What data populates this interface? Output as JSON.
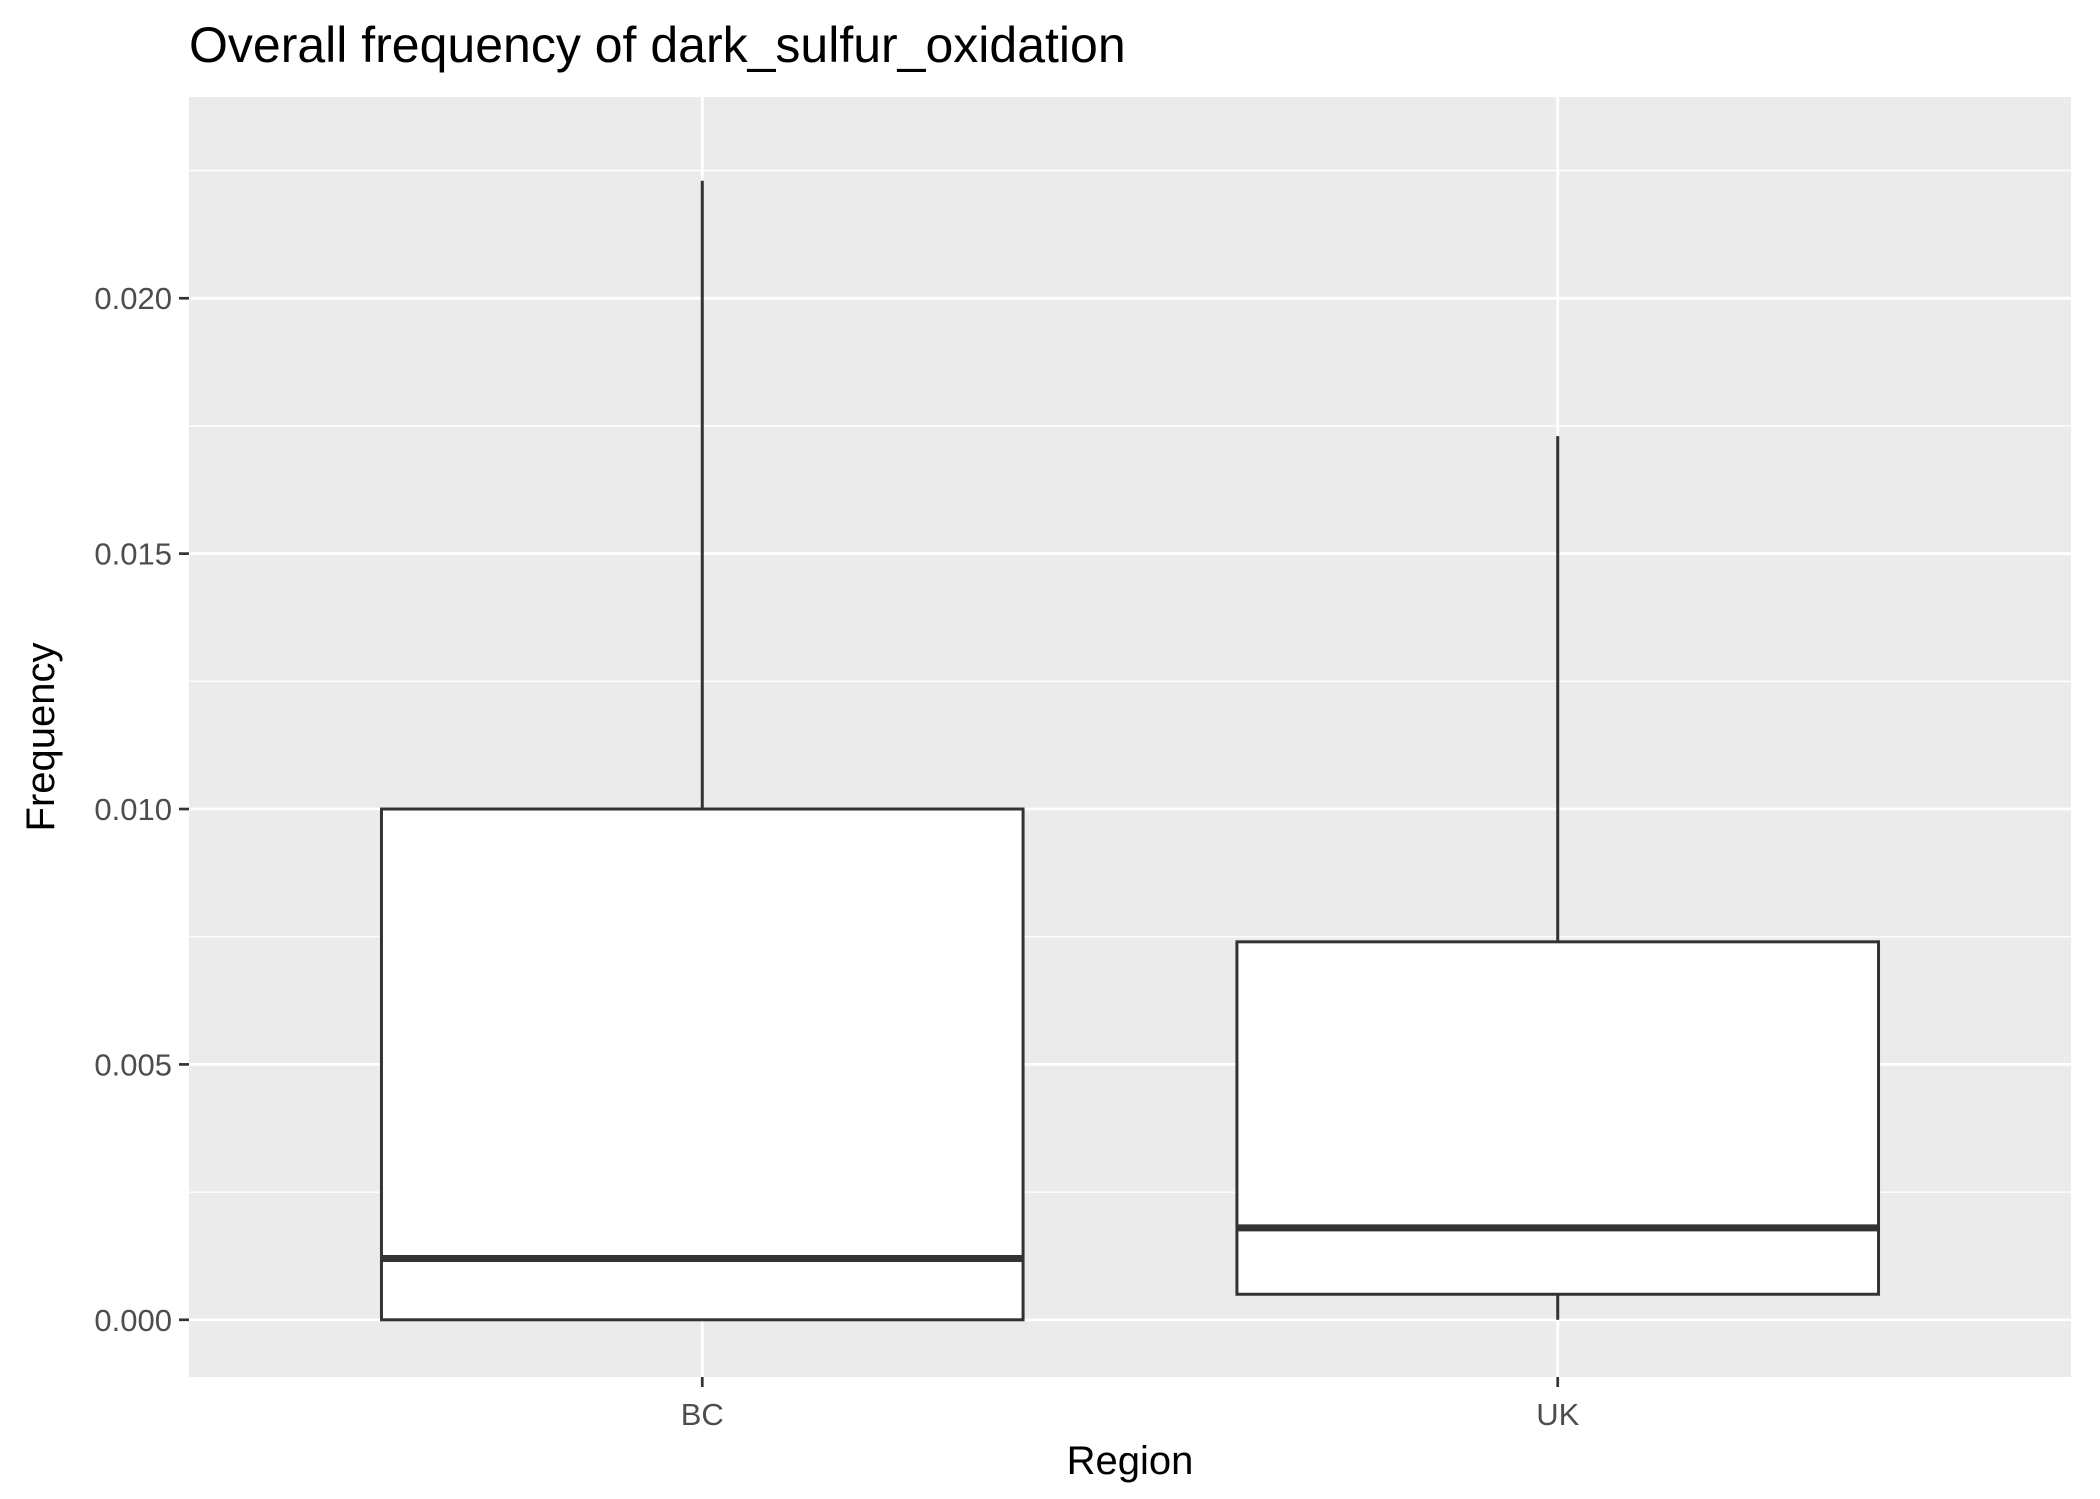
{
  "chart_data": {
    "type": "boxplot",
    "title": "Overall frequency of dark_sulfur_oxidation",
    "xlabel": "Region",
    "ylabel": "Frequency",
    "categories": [
      "BC",
      "UK"
    ],
    "boxes": [
      {
        "category": "BC",
        "min": 0.0,
        "q1": 0.0,
        "median": 0.0012,
        "q3": 0.01,
        "max": 0.0223
      },
      {
        "category": "UK",
        "min": 0.0,
        "q1": 0.0005,
        "median": 0.0018,
        "q3": 0.0074,
        "max": 0.0173
      }
    ],
    "yticks": [
      0.0,
      0.005,
      0.01,
      0.015,
      0.02
    ],
    "ytick_labels": [
      "0.000",
      "0.005",
      "0.010",
      "0.015",
      "0.020"
    ],
    "ylim": [
      -0.00112,
      0.02394
    ],
    "grid": true,
    "colors": {
      "panel_background": "#ebebeb",
      "grid_major": "#ffffff",
      "box_fill": "#ffffff",
      "box_stroke": "#333333",
      "tick_text": "#4d4d4d",
      "text": "#000000"
    }
  }
}
